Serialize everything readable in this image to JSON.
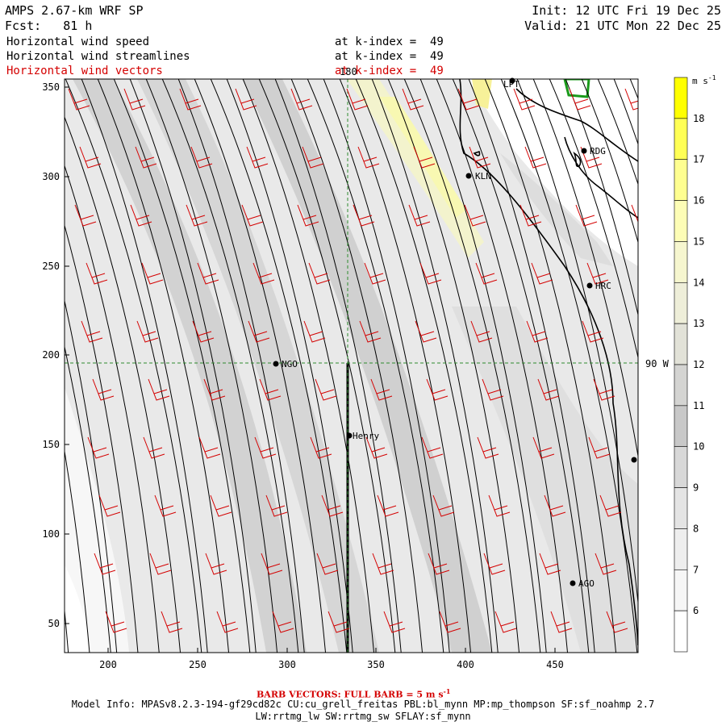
{
  "header": {
    "model": "AMPS 2.67-km WRF SP",
    "fcst_label": "Fcst:",
    "fcst_value": "81 h",
    "init": "Init: 12 UTC Fri 19 Dec 25",
    "valid": "Valid: 21 UTC Mon 22 Dec 25",
    "fields": [
      {
        "name": "Horizontal wind speed",
        "level": "at k-index =  49"
      },
      {
        "name": "Horizontal wind streamlines",
        "level": "at k-index =  49"
      },
      {
        "name": "Horizontal wind vectors",
        "level": "at k-index =  49"
      }
    ]
  },
  "map": {
    "x_ticks": [
      "200",
      "250",
      "300",
      "350",
      "400",
      "450"
    ],
    "y_ticks": [
      "350",
      "300",
      "250",
      "200",
      "150",
      "100",
      "50"
    ],
    "meridian_label": "180",
    "parallel_label": "90 W",
    "stations": [
      "LPT",
      "RDG",
      "KLN",
      "HRC",
      "NGO",
      "Henry",
      "AGO"
    ]
  },
  "colorbar": {
    "unit": "m s",
    "unit_sup": "-1",
    "levels": [
      "18",
      "17",
      "16",
      "15",
      "14",
      "13",
      "12",
      "11",
      "10",
      "9",
      "8",
      "7",
      "6"
    ],
    "colors": [
      "#ffff00",
      "#ffff55",
      "#fefe90",
      "#fdfdb6",
      "#f6f6cf",
      "#eeeed9",
      "#e2e2d8",
      "#d4d4d2",
      "#c8c8c8",
      "#d8d8d8",
      "#e4e4e4",
      "#eeeeee",
      "#f6f6f6",
      "#ffffff"
    ]
  },
  "footer": {
    "barb_note": "BARB VECTORS: FULL BARB = 5 m s",
    "barb_sup": "-1",
    "model_info": "Model Info: MPASv8.2.3-194-gf29cd82c CU:cu_grell_freitas PBL:bl_mynn MP:mp_thompson SF:sf_noahmp 2.7",
    "model_info2": "LW:rrtmg_lw SW:rrtmg_sw SFLAY:sf_mynn"
  }
}
